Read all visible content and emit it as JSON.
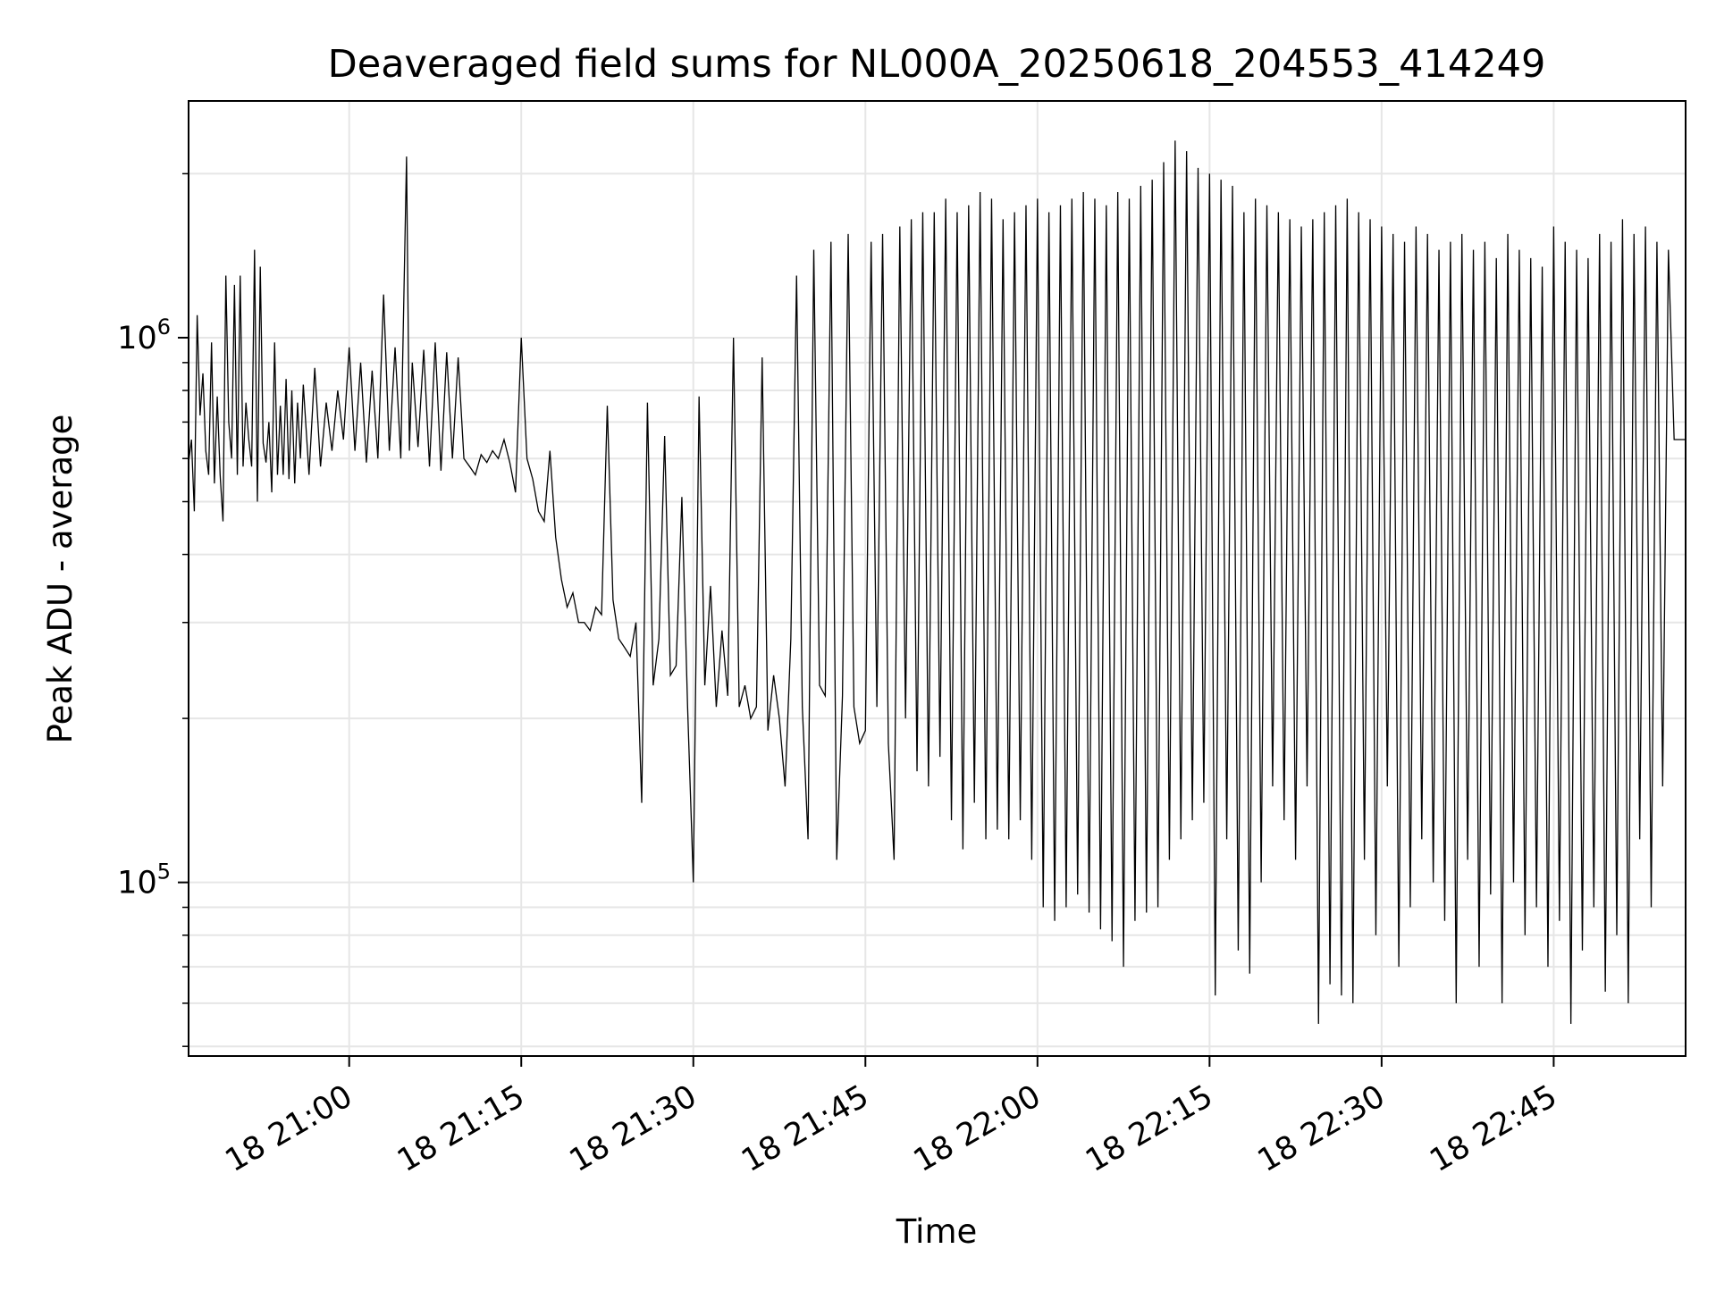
{
  "chart_data": {
    "type": "line",
    "title": "Deaveraged field sums for NL000A_20250618_204553_414249",
    "xlabel": "Time",
    "ylabel": "Peak ADU - average",
    "yscale": "log",
    "ylim": [
      48000,
      2720000
    ],
    "xlim": [
      "2025-06-18T20:46:00",
      "2025-06-18T22:56:30"
    ],
    "grid": true,
    "line_color": "#000000",
    "grid_color": "#e6e6e6",
    "x_ticks": [
      {
        "value": "2025-06-18T21:00:00",
        "label": "18 21:00"
      },
      {
        "value": "2025-06-18T21:15:00",
        "label": "18 21:15"
      },
      {
        "value": "2025-06-18T21:30:00",
        "label": "18 21:30"
      },
      {
        "value": "2025-06-18T21:45:00",
        "label": "18 21:45"
      },
      {
        "value": "2025-06-18T22:00:00",
        "label": "18 22:00"
      },
      {
        "value": "2025-06-18T22:15:00",
        "label": "18 22:15"
      },
      {
        "value": "2025-06-18T22:30:00",
        "label": "18 22:30"
      },
      {
        "value": "2025-06-18T22:45:00",
        "label": "18 22:45"
      }
    ],
    "y_ticks": [
      {
        "value": 100000,
        "base": "10",
        "exp": "5"
      },
      {
        "value": 1000000,
        "base": "10",
        "exp": "6"
      }
    ],
    "series": [
      {
        "x": [
          "20:46:00",
          "20:46:15",
          "20:46:30",
          "20:46:45",
          "20:47:00",
          "20:47:15",
          "20:47:30",
          "20:47:45",
          "20:48:00",
          "20:48:15",
          "20:48:30",
          "20:48:45",
          "20:49:00",
          "20:49:15",
          "20:49:30",
          "20:49:45",
          "20:50:00",
          "20:50:15",
          "20:50:30",
          "20:50:45",
          "20:51:00",
          "20:51:15",
          "20:51:30",
          "20:51:45",
          "20:52:00",
          "20:52:15",
          "20:52:30",
          "20:52:45",
          "20:53:00",
          "20:53:15",
          "20:53:30",
          "20:53:45",
          "20:54:00",
          "20:54:15",
          "20:54:30",
          "20:54:45",
          "20:55:00",
          "20:55:15",
          "20:55:30",
          "20:55:45",
          "20:56:00",
          "20:56:30",
          "20:57:00",
          "20:57:30",
          "20:58:00",
          "20:58:30",
          "20:59:00",
          "20:59:30",
          "21:00:00",
          "21:00:30",
          "21:01:00",
          "21:01:30",
          "21:02:00",
          "21:02:30",
          "21:03:00",
          "21:03:30",
          "21:04:00",
          "21:04:30",
          "21:05:00",
          "21:05:15",
          "21:05:30",
          "21:06:00",
          "21:06:30",
          "21:07:00",
          "21:07:30",
          "21:08:00",
          "21:08:30",
          "21:09:00",
          "21:09:30",
          "21:10:00",
          "21:10:30",
          "21:11:00",
          "21:11:30",
          "21:12:00",
          "21:12:30",
          "21:13:00",
          "21:13:30",
          "21:14:00",
          "21:14:30",
          "21:15:00",
          "21:15:30",
          "21:16:00",
          "21:16:30",
          "21:17:00",
          "21:17:30",
          "21:18:00",
          "21:18:30",
          "21:19:00",
          "21:19:30",
          "21:20:00",
          "21:20:30",
          "21:21:00",
          "21:21:30",
          "21:22:00",
          "21:22:30",
          "21:23:00",
          "21:23:30",
          "21:24:00",
          "21:24:30",
          "21:25:00",
          "21:25:30",
          "21:26:00",
          "21:26:30",
          "21:27:00",
          "21:27:30",
          "21:28:00",
          "21:28:30",
          "21:29:00",
          "21:29:30",
          "21:30:00",
          "21:30:30",
          "21:31:00",
          "21:31:30",
          "21:32:00",
          "21:32:30",
          "21:33:00",
          "21:33:30",
          "21:34:00",
          "21:34:30",
          "21:35:00",
          "21:35:30",
          "21:36:00",
          "21:36:30",
          "21:37:00",
          "21:37:30",
          "21:38:00",
          "21:38:30",
          "21:39:00",
          "21:39:30",
          "21:40:00",
          "21:40:30",
          "21:41:00",
          "21:41:30",
          "21:42:00",
          "21:42:30",
          "21:43:00",
          "21:43:30",
          "21:44:00",
          "21:44:30",
          "21:45:00",
          "21:45:30",
          "21:46:00",
          "21:46:30",
          "21:47:00",
          "21:47:30",
          "21:48:00",
          "21:48:30",
          "21:49:00",
          "21:49:30",
          "21:50:00",
          "21:50:30",
          "21:51:00",
          "21:51:30",
          "21:52:00",
          "21:52:30",
          "21:53:00",
          "21:53:30",
          "21:54:00",
          "21:54:30",
          "21:55:00",
          "21:55:30",
          "21:56:00",
          "21:56:30",
          "21:57:00",
          "21:57:30",
          "21:58:00",
          "21:58:30",
          "21:59:00",
          "21:59:30",
          "22:00:00",
          "22:00:30",
          "22:01:00",
          "22:01:30",
          "22:02:00",
          "22:02:30",
          "22:03:00",
          "22:03:30",
          "22:04:00",
          "22:04:30",
          "22:05:00",
          "22:05:30",
          "22:06:00",
          "22:06:30",
          "22:07:00",
          "22:07:30",
          "22:08:00",
          "22:08:30",
          "22:09:00",
          "22:09:30",
          "22:10:00",
          "22:10:30",
          "22:11:00",
          "22:11:30",
          "22:12:00",
          "22:12:30",
          "22:13:00",
          "22:13:30",
          "22:14:00",
          "22:14:30",
          "22:15:00",
          "22:15:30",
          "22:16:00",
          "22:16:30",
          "22:17:00",
          "22:17:30",
          "22:18:00",
          "22:18:30",
          "22:19:00",
          "22:19:30",
          "22:20:00",
          "22:20:30",
          "22:21:00",
          "22:21:30",
          "22:22:00",
          "22:22:30",
          "22:23:00",
          "22:23:30",
          "22:24:00",
          "22:24:30",
          "22:25:00",
          "22:25:30",
          "22:26:00",
          "22:26:30",
          "22:27:00",
          "22:27:30",
          "22:28:00",
          "22:28:30",
          "22:29:00",
          "22:29:30",
          "22:30:00",
          "22:30:30",
          "22:31:00",
          "22:31:30",
          "22:32:00",
          "22:32:30",
          "22:33:00",
          "22:33:30",
          "22:34:00",
          "22:34:30",
          "22:35:00",
          "22:35:30",
          "22:36:00",
          "22:36:30",
          "22:37:00",
          "22:37:30",
          "22:38:00",
          "22:38:30",
          "22:39:00",
          "22:39:30",
          "22:40:00",
          "22:40:30",
          "22:41:00",
          "22:41:30",
          "22:42:00",
          "22:42:30",
          "22:43:00",
          "22:43:30",
          "22:44:00",
          "22:44:30",
          "22:45:00",
          "22:45:30",
          "22:46:00",
          "22:46:30",
          "22:47:00",
          "22:47:30",
          "22:48:00",
          "22:48:30",
          "22:49:00",
          "22:49:30",
          "22:50:00",
          "22:50:30",
          "22:51:00",
          "22:51:30",
          "22:52:00",
          "22:52:30",
          "22:53:00",
          "22:53:30",
          "22:54:00",
          "22:54:30",
          "22:55:00",
          "22:55:30",
          "22:56:00",
          "22:56:30"
        ],
        "y": [
          590000,
          650000,
          480000,
          1100000,
          720000,
          860000,
          620000,
          560000,
          980000,
          540000,
          780000,
          560000,
          460000,
          1300000,
          700000,
          600000,
          1250000,
          560000,
          1300000,
          580000,
          760000,
          650000,
          580000,
          1450000,
          500000,
          1350000,
          640000,
          590000,
          700000,
          520000,
          980000,
          560000,
          750000,
          560000,
          840000,
          550000,
          800000,
          540000,
          760000,
          600000,
          820000,
          560000,
          880000,
          580000,
          760000,
          620000,
          800000,
          650000,
          960000,
          620000,
          900000,
          590000,
          870000,
          600000,
          1200000,
          620000,
          960000,
          600000,
          2150000,
          620000,
          900000,
          630000,
          950000,
          580000,
          980000,
          570000,
          940000,
          600000,
          920000,
          600000,
          580000,
          560000,
          610000,
          590000,
          620000,
          600000,
          650000,
          590000,
          520000,
          1000000,
          600000,
          550000,
          480000,
          460000,
          620000,
          430000,
          360000,
          320000,
          340000,
          300000,
          300000,
          290000,
          320000,
          310000,
          750000,
          330000,
          280000,
          270000,
          260000,
          300000,
          140000,
          760000,
          230000,
          280000,
          660000,
          240000,
          250000,
          510000,
          210000,
          100000,
          780000,
          230000,
          350000,
          210000,
          290000,
          220000,
          1000000,
          210000,
          230000,
          200000,
          210000,
          920000,
          190000,
          240000,
          200000,
          150000,
          280000,
          1300000,
          210000,
          120000,
          1450000,
          230000,
          220000,
          1500000,
          110000,
          220000,
          1550000,
          210000,
          180000,
          190000,
          1500000,
          210000,
          1550000,
          180000,
          110000,
          1600000,
          200000,
          1650000,
          160000,
          1700000,
          150000,
          1700000,
          170000,
          1800000,
          130000,
          1700000,
          115000,
          1750000,
          140000,
          1850000,
          120000,
          1800000,
          125000,
          1650000,
          120000,
          1700000,
          130000,
          1750000,
          110000,
          1800000,
          90000,
          1700000,
          85000,
          1750000,
          90000,
          1800000,
          95000,
          1850000,
          88000,
          1800000,
          82000,
          1750000,
          78000,
          1850000,
          70000,
          1800000,
          85000,
          1900000,
          88000,
          1950000,
          90000,
          2100000,
          110000,
          2300000,
          120000,
          2200000,
          130000,
          2050000,
          140000,
          2000000,
          62000,
          1950000,
          120000,
          1900000,
          75000,
          1700000,
          68000,
          1800000,
          100000,
          1750000,
          150000,
          1700000,
          130000,
          1650000,
          110000,
          1600000,
          150000,
          1650000,
          55000,
          1700000,
          65000,
          1750000,
          62000,
          1800000,
          60000,
          1700000,
          110000,
          1650000,
          80000,
          1600000,
          150000,
          1550000,
          70000,
          1500000,
          90000,
          1600000,
          120000,
          1550000,
          100000,
          1450000,
          85000,
          1500000,
          60000,
          1550000,
          110000,
          1450000,
          70000,
          1500000,
          95000,
          1400000,
          60000,
          1550000,
          100000,
          1450000,
          80000,
          1400000,
          90000,
          1350000,
          70000,
          1600000,
          85000,
          1500000,
          55000,
          1450000,
          75000,
          1400000,
          90000,
          1550000,
          63000,
          1500000,
          80000,
          1650000,
          60000,
          1550000,
          120000,
          1600000,
          90000,
          1500000,
          150000,
          1450000,
          650000,
          650000,
          650000
        ]
      }
    ]
  }
}
